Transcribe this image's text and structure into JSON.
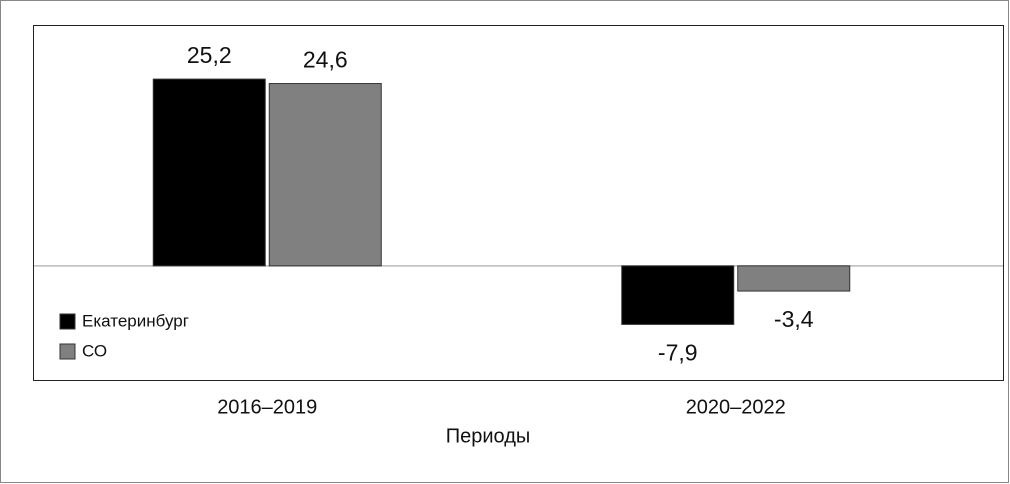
{
  "chart_data": {
    "type": "bar",
    "x_label": "Периоды",
    "categories": [
      "2016–2019",
      "2020–2022"
    ],
    "series": [
      {
        "name": "Екатеринбург",
        "color": "#000000",
        "values": [
          25.2,
          -7.9
        ],
        "value_labels": [
          "25,2",
          "-7,9"
        ]
      },
      {
        "name": "СО",
        "color": "#808080",
        "values": [
          24.6,
          -3.4
        ],
        "value_labels": [
          "24,6",
          "-3,4"
        ]
      }
    ],
    "ylim": [
      -15.4,
      32.5
    ],
    "legend": "lower left"
  }
}
